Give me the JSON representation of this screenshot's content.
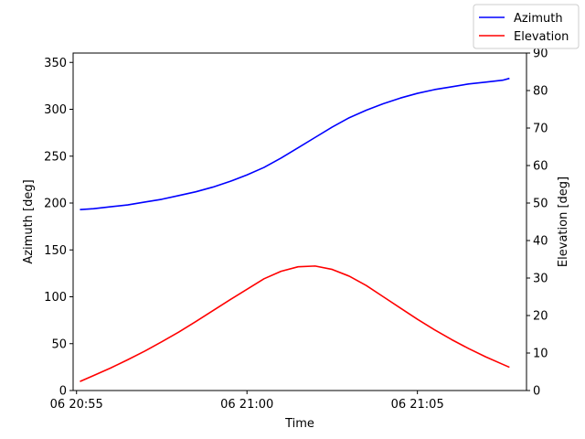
{
  "chart_data": {
    "type": "line",
    "xlabel": "Time",
    "ylabel_left": "Azimuth [deg]",
    "ylabel_right": "Elevation [deg]",
    "x_ticks": [
      {
        "label": "06 20:55",
        "minute": 0
      },
      {
        "label": "06 21:00",
        "minute": 5
      },
      {
        "label": "06 21:05",
        "minute": 10
      }
    ],
    "xlim": [
      -0.1,
      13.2
    ],
    "ylim_left": [
      0,
      360
    ],
    "ylim_right": [
      0,
      90
    ],
    "y_ticks_left": [
      0,
      50,
      100,
      150,
      200,
      250,
      300,
      350
    ],
    "y_ticks_right": [
      0,
      10,
      20,
      30,
      40,
      50,
      60,
      70,
      80,
      90
    ],
    "legend_position": "top-right",
    "grid": false,
    "x": [
      0.1,
      0.5,
      1.0,
      1.5,
      2.0,
      2.5,
      3.0,
      3.5,
      4.0,
      4.5,
      5.0,
      5.5,
      6.0,
      6.5,
      7.0,
      7.5,
      8.0,
      8.5,
      9.0,
      9.5,
      10.0,
      10.5,
      11.0,
      11.5,
      12.0,
      12.5,
      12.7
    ],
    "series": [
      {
        "name": "Azimuth",
        "axis": "left",
        "color": "#0000ff",
        "values": [
          193,
          194,
          196,
          198,
          201,
          204,
          208,
          212,
          217,
          223,
          230,
          238,
          248,
          259,
          270,
          281,
          291,
          299,
          306,
          312,
          317,
          321,
          324,
          327,
          329,
          331,
          333
        ]
      },
      {
        "name": "Elevation",
        "axis": "right",
        "color": "#ff0000",
        "values": [
          2.4,
          4.0,
          6.0,
          8.2,
          10.5,
          13.0,
          15.6,
          18.4,
          21.3,
          24.2,
          27.0,
          29.8,
          31.8,
          33.0,
          33.2,
          32.3,
          30.5,
          28.0,
          25.0,
          22.0,
          19.0,
          16.2,
          13.6,
          11.2,
          9.0,
          7.0,
          6.2
        ]
      }
    ]
  }
}
